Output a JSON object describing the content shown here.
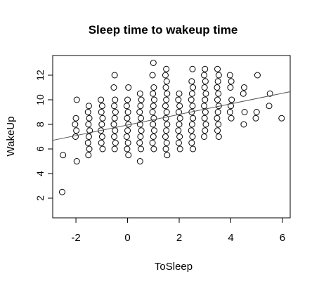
{
  "chart_data": {
    "type": "scatter",
    "title": "Sleep time to wakeup time",
    "xlabel": "ToSleep",
    "ylabel": "WakeUp",
    "xlim": [
      -2.9,
      6.3
    ],
    "ylim": [
      0.4,
      13.6
    ],
    "x_ticks": [
      -2,
      0,
      2,
      4,
      6
    ],
    "y_ticks": [
      2,
      4,
      6,
      8,
      10,
      12
    ],
    "grid": false,
    "legend": "none",
    "regression_line": {
      "intercept": 7.95,
      "slope": 0.43
    },
    "x_jitter_columns": [
      -2.5,
      -2,
      -1.5,
      -1,
      -0.5,
      0,
      0.5,
      1,
      1.5,
      2,
      2.5,
      3,
      3.5,
      4,
      4.5,
      5,
      5.5,
      6
    ],
    "points": [
      [
        -2.5,
        2.5
      ],
      [
        -2.5,
        5.5
      ],
      [
        -2,
        5
      ],
      [
        -2,
        7
      ],
      [
        -2,
        7.5
      ],
      [
        -2,
        8
      ],
      [
        -2,
        8.5
      ],
      [
        -2,
        10
      ],
      [
        -1.5,
        5.5
      ],
      [
        -1.5,
        6
      ],
      [
        -1.5,
        6.5
      ],
      [
        -1.5,
        7
      ],
      [
        -1.5,
        7.5
      ],
      [
        -1.5,
        8
      ],
      [
        -1.5,
        8.5
      ],
      [
        -1.5,
        9
      ],
      [
        -1.5,
        9.5
      ],
      [
        -1,
        6
      ],
      [
        -1,
        6.5
      ],
      [
        -1,
        7
      ],
      [
        -1,
        7.5
      ],
      [
        -1,
        8
      ],
      [
        -1,
        8.5
      ],
      [
        -1,
        9
      ],
      [
        -1,
        9.5
      ],
      [
        -1,
        10
      ],
      [
        -0.5,
        6
      ],
      [
        -0.5,
        6.5
      ],
      [
        -0.5,
        7
      ],
      [
        -0.5,
        7.5
      ],
      [
        -0.5,
        8
      ],
      [
        -0.5,
        8.5
      ],
      [
        -0.5,
        9
      ],
      [
        -0.5,
        9.5
      ],
      [
        -0.5,
        10
      ],
      [
        -0.5,
        11
      ],
      [
        -0.5,
        12
      ],
      [
        0,
        5.5
      ],
      [
        0,
        6
      ],
      [
        0,
        6.5
      ],
      [
        0,
        7
      ],
      [
        0,
        7.5
      ],
      [
        0,
        8
      ],
      [
        0,
        8.5
      ],
      [
        0,
        9
      ],
      [
        0,
        9.5
      ],
      [
        0,
        10
      ],
      [
        0,
        11
      ],
      [
        0.5,
        5
      ],
      [
        0.5,
        6
      ],
      [
        0.5,
        6.5
      ],
      [
        0.5,
        7
      ],
      [
        0.5,
        7.5
      ],
      [
        0.5,
        8
      ],
      [
        0.5,
        8.5
      ],
      [
        0.5,
        9
      ],
      [
        0.5,
        9.5
      ],
      [
        0.5,
        10
      ],
      [
        0.5,
        10.5
      ],
      [
        1,
        6
      ],
      [
        1,
        6.5
      ],
      [
        1,
        7
      ],
      [
        1,
        7.5
      ],
      [
        1,
        8
      ],
      [
        1,
        8.5
      ],
      [
        1,
        9
      ],
      [
        1,
        9.5
      ],
      [
        1,
        10
      ],
      [
        1,
        10.5
      ],
      [
        1,
        11
      ],
      [
        1,
        12
      ],
      [
        1,
        13
      ],
      [
        1.5,
        5.5
      ],
      [
        1.5,
        6
      ],
      [
        1.5,
        6.5
      ],
      [
        1.5,
        7
      ],
      [
        1.5,
        7.5
      ],
      [
        1.5,
        8
      ],
      [
        1.5,
        8.5
      ],
      [
        1.5,
        9
      ],
      [
        1.5,
        9.5
      ],
      [
        1.5,
        10
      ],
      [
        1.5,
        10.5
      ],
      [
        1.5,
        11
      ],
      [
        1.5,
        11.5
      ],
      [
        1.5,
        12
      ],
      [
        1.5,
        12.5
      ],
      [
        2,
        6
      ],
      [
        2,
        6.5
      ],
      [
        2,
        7
      ],
      [
        2,
        7.5
      ],
      [
        2,
        8
      ],
      [
        2,
        8.5
      ],
      [
        2,
        9
      ],
      [
        2,
        9.5
      ],
      [
        2,
        10
      ],
      [
        2,
        10.5
      ],
      [
        2.5,
        6
      ],
      [
        2.5,
        6.5
      ],
      [
        2.5,
        7
      ],
      [
        2.5,
        7.5
      ],
      [
        2.5,
        8
      ],
      [
        2.5,
        8.5
      ],
      [
        2.5,
        9
      ],
      [
        2.5,
        9.5
      ],
      [
        2.5,
        10
      ],
      [
        2.5,
        10.5
      ],
      [
        2.5,
        11
      ],
      [
        2.5,
        11.5
      ],
      [
        2.5,
        12.5
      ],
      [
        3,
        7
      ],
      [
        3,
        7.5
      ],
      [
        3,
        8
      ],
      [
        3,
        8.5
      ],
      [
        3,
        9
      ],
      [
        3,
        9.5
      ],
      [
        3,
        10
      ],
      [
        3,
        10.5
      ],
      [
        3,
        11
      ],
      [
        3,
        11.5
      ],
      [
        3,
        12
      ],
      [
        3,
        12.5
      ],
      [
        3.5,
        7
      ],
      [
        3.5,
        7.5
      ],
      [
        3.5,
        8
      ],
      [
        3.5,
        8.5
      ],
      [
        3.5,
        9
      ],
      [
        3.5,
        9.5
      ],
      [
        3.5,
        10
      ],
      [
        3.5,
        10.5
      ],
      [
        3.5,
        11
      ],
      [
        3.5,
        11.5
      ],
      [
        3.5,
        12
      ],
      [
        3.5,
        12.5
      ],
      [
        4,
        8.5
      ],
      [
        4,
        9
      ],
      [
        4,
        9.5
      ],
      [
        4,
        10
      ],
      [
        4,
        11
      ],
      [
        4,
        11.5
      ],
      [
        4,
        12
      ],
      [
        4.5,
        8
      ],
      [
        4.5,
        9
      ],
      [
        4.5,
        10.5
      ],
      [
        4.5,
        11
      ],
      [
        5,
        8.5
      ],
      [
        5,
        9
      ],
      [
        5,
        12
      ],
      [
        5.5,
        9.5
      ],
      [
        5.5,
        10.5
      ],
      [
        6,
        8.5
      ]
    ]
  }
}
